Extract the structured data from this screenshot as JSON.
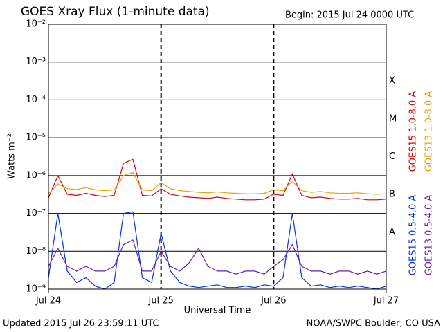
{
  "chart_data": {
    "type": "line",
    "title": "GOES Xray Flux (1-minute data)",
    "begin": "Begin:  2015 Jul 24 0000 UTC",
    "updated": "Updated 2015 Jul 26 23:59:11 UTC",
    "source": "NOAA/SWPC Boulder, CO USA",
    "x_label": "Universal Time",
    "y_label": "Watts m⁻²",
    "log_y": true,
    "grid": true,
    "flare_classes": [
      "X",
      "M",
      "C",
      "B",
      "A"
    ],
    "x": [
      0,
      2,
      4,
      6,
      8,
      10,
      12,
      14,
      16,
      18,
      20,
      22,
      24,
      26,
      28,
      30,
      32,
      34,
      36,
      38,
      40,
      42,
      44,
      46,
      48,
      50,
      52,
      54,
      56,
      58,
      60,
      62,
      64,
      66,
      68,
      70,
      72
    ],
    "xlim": [
      0,
      72
    ],
    "xticks": [
      {
        "value": 0,
        "label": "Jul 24"
      },
      {
        "value": 24,
        "label": "Jul 25"
      },
      {
        "value": 48,
        "label": "Jul 26"
      },
      {
        "value": 72,
        "label": "Jul 27"
      }
    ],
    "ylim": [
      1e-09,
      0.01
    ],
    "yticks": [
      {
        "value": 0.01,
        "label": "10⁻²"
      },
      {
        "value": 0.001,
        "label": "10⁻³"
      },
      {
        "value": 0.0001,
        "label": "10⁻⁴"
      },
      {
        "value": 1e-05,
        "label": "10⁻⁵"
      },
      {
        "value": 1e-06,
        "label": "10⁻⁶"
      },
      {
        "value": 1e-07,
        "label": "10⁻⁷"
      },
      {
        "value": 1e-08,
        "label": "10⁻⁸"
      },
      {
        "value": 1e-09,
        "label": "10⁻⁹"
      }
    ],
    "series": [
      {
        "name": "GOES15 1.0-8.0 A",
        "color": "#e00000",
        "values": [
          2.6e-07,
          1e-06,
          3.2e-07,
          3e-07,
          3.4e-07,
          3e-07,
          2.8e-07,
          3e-07,
          2.1e-06,
          2.7e-06,
          3e-07,
          2.9e-07,
          4.5e-07,
          3.2e-07,
          2.9e-07,
          2.7e-07,
          2.6e-07,
          2.5e-07,
          2.7e-07,
          2.5e-07,
          2.4e-07,
          2.3e-07,
          2.3e-07,
          2.4e-07,
          3.2e-07,
          3e-07,
          1.1e-06,
          3e-07,
          2.6e-07,
          2.7e-07,
          2.5e-07,
          2.4e-07,
          2.4e-07,
          2.5e-07,
          2.3e-07,
          2.3e-07,
          2.4e-07
        ]
      },
      {
        "name": "GOES13 1.0-8.0 A",
        "color": "#f0a000",
        "values": [
          3.3e-07,
          6e-07,
          4.5e-07,
          4.3e-07,
          4.8e-07,
          4.2e-07,
          4e-07,
          4.2e-07,
          1e-06,
          1.2e-06,
          4.2e-07,
          4e-07,
          6.5e-07,
          4.5e-07,
          4e-07,
          3.8e-07,
          3.6e-07,
          3.5e-07,
          3.7e-07,
          3.5e-07,
          3.4e-07,
          3.3e-07,
          3.3e-07,
          3.4e-07,
          4.2e-07,
          4e-07,
          7e-07,
          4e-07,
          3.6e-07,
          3.8e-07,
          3.5e-07,
          3.4e-07,
          3.4e-07,
          3.5e-07,
          3.3e-07,
          3.2e-07,
          3.3e-07
        ]
      },
      {
        "name": "GOES15 0.5-4.0 A",
        "color": "#0030f0",
        "values": [
          2e-09,
          1e-07,
          3e-09,
          1.5e-09,
          2e-09,
          1.2e-09,
          1e-09,
          1.5e-09,
          1e-07,
          1.1e-07,
          2e-09,
          1.5e-09,
          3e-08,
          3e-09,
          1.5e-09,
          1.2e-09,
          1.1e-09,
          1.2e-09,
          1.3e-09,
          1.1e-09,
          1.1e-09,
          1.2e-09,
          1.1e-09,
          1.3e-09,
          1.2e-09,
          2e-09,
          1e-07,
          2e-09,
          1.2e-09,
          1.3e-09,
          1.1e-09,
          1.2e-09,
          1.1e-09,
          1.2e-09,
          1.1e-09,
          1e-09,
          1.2e-09
        ]
      },
      {
        "name": "GOES13 0.5-4.0 A",
        "color": "#6020b0",
        "values": [
          4e-09,
          1.2e-08,
          4e-09,
          3e-09,
          4e-09,
          3e-09,
          3e-09,
          4e-09,
          1.5e-08,
          2e-08,
          3e-09,
          3e-09,
          1e-08,
          4e-09,
          3e-09,
          5e-09,
          1.2e-08,
          4e-09,
          3e-09,
          3e-09,
          2.5e-09,
          3e-09,
          3e-09,
          2.5e-09,
          4e-09,
          6e-09,
          1.5e-08,
          4e-09,
          3e-09,
          3e-09,
          2.5e-09,
          3e-09,
          3e-09,
          2.5e-09,
          3e-09,
          2.5e-09,
          3e-09
        ]
      }
    ]
  }
}
